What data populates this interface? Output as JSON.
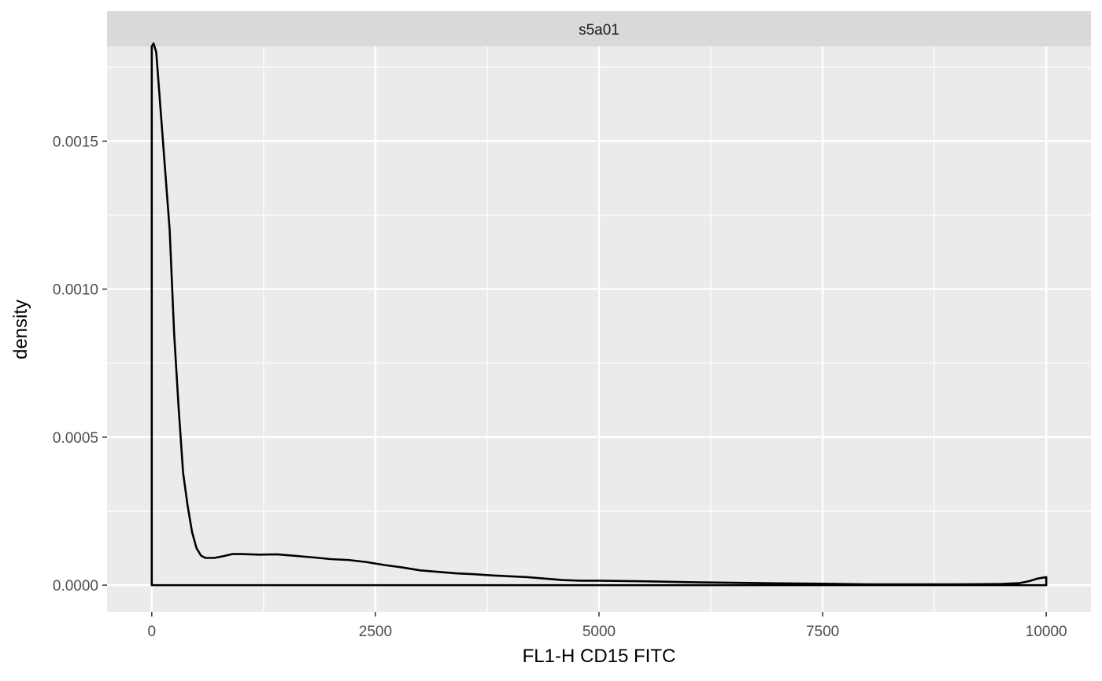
{
  "chart_data": {
    "type": "area",
    "panel_label": "s5a01",
    "xlabel": "FL1-H CD15 FITC",
    "ylabel": "density",
    "xlim": [
      -500,
      10500
    ],
    "ylim": [
      -9e-05,
      0.00182
    ],
    "x_ticks": [
      0,
      2500,
      5000,
      7500,
      10000
    ],
    "x_tick_labels": [
      "0",
      "2500",
      "5000",
      "7500",
      "10000"
    ],
    "y_ticks": [
      0.0,
      0.0005,
      0.001,
      0.0015
    ],
    "y_tick_labels": [
      "0.0000",
      "0.0005",
      "0.0010",
      "0.0015"
    ],
    "grid": true,
    "legend": "none",
    "series": [
      {
        "x": [
          0,
          20,
          50,
          100,
          150,
          200,
          250,
          300,
          350,
          400,
          450,
          500,
          550,
          600,
          700,
          800,
          900,
          1000,
          1200,
          1400,
          1600,
          1800,
          2000,
          2200,
          2400,
          2600,
          2800,
          3000,
          3200,
          3400,
          3600,
          3800,
          4000,
          4200,
          4400,
          4600,
          4800,
          5000,
          5500,
          6000,
          6500,
          7000,
          7500,
          8000,
          8500,
          9000,
          9500,
          9700,
          9800,
          9900,
          10000
        ],
        "y": [
          0.00182,
          0.00183,
          0.0018,
          0.0016,
          0.0014,
          0.0012,
          0.00085,
          0.0006,
          0.00038,
          0.00027,
          0.00018,
          0.000125,
          0.0001,
          9.2e-05,
          9.2e-05,
          9.8e-05,
          0.000105,
          0.000105,
          0.000103,
          0.000104,
          9.9e-05,
          9.4e-05,
          8.8e-05,
          8.5e-05,
          7.8e-05,
          6.8e-05,
          6e-05,
          5e-05,
          4.5e-05,
          4e-05,
          3.7e-05,
          3.3e-05,
          3e-05,
          2.7e-05,
          2.2e-05,
          1.7e-05,
          1.5e-05,
          1.5e-05,
          1.3e-05,
          1e-05,
          8e-06,
          6e-06,
          5e-06,
          3e-06,
          3e-06,
          3e-06,
          4e-06,
          7e-06,
          1.3e-05,
          2.2e-05,
          2.7e-05
        ]
      }
    ],
    "colors": {
      "panel_background": "#ebebeb",
      "grid_line": "#ffffff",
      "strip_background": "#d9d9d9",
      "line": "#000000",
      "tick_text": "#4d4d4d",
      "tick_mark": "#333333"
    }
  }
}
